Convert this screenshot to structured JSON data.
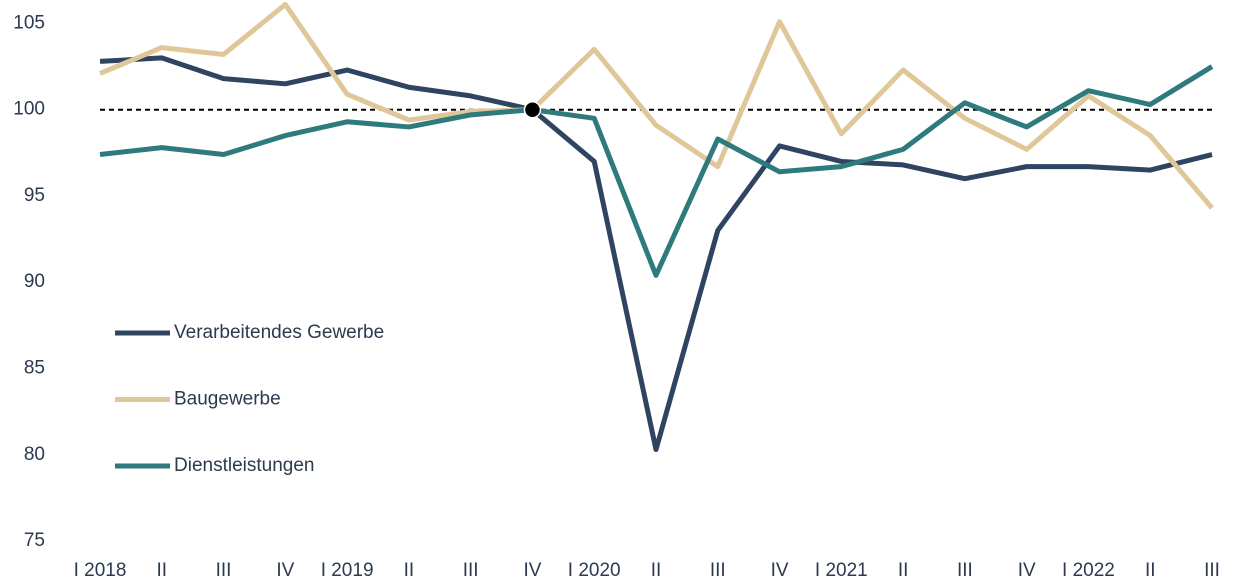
{
  "chart_data": {
    "type": "line",
    "categories": [
      "I 2018",
      "II",
      "III",
      "IV",
      "I 2019",
      "II",
      "III",
      "IV",
      "I 2020",
      "II",
      "III",
      "IV",
      "I 2021",
      "II",
      "III",
      "IV",
      "I 2022",
      "II",
      "III"
    ],
    "series": [
      {
        "name": "Verarbeitendes Gewerbe",
        "color": "#2e4461",
        "values": [
          102.8,
          103.0,
          101.8,
          101.5,
          102.3,
          101.3,
          100.8,
          100,
          97.0,
          80.3,
          93.0,
          97.9,
          97.0,
          96.8,
          96.0,
          96.7,
          96.7,
          96.5,
          97.4
        ]
      },
      {
        "name": "Baugewerbe",
        "color": "#e0c79a",
        "values": [
          102.1,
          103.6,
          103.2,
          106.1,
          100.9,
          99.4,
          99.9,
          100,
          103.5,
          99.1,
          96.7,
          105.1,
          98.6,
          102.3,
          99.5,
          97.7,
          100.8,
          98.5,
          94.3
        ]
      },
      {
        "name": "Dienstleistungen",
        "color": "#2e7a7d",
        "values": [
          97.4,
          97.8,
          97.4,
          98.5,
          99.3,
          99.0,
          99.7,
          100,
          99.5,
          90.4,
          98.3,
          96.4,
          96.7,
          97.7,
          100.4,
          99.0,
          101.1,
          100.3,
          102.5
        ]
      }
    ],
    "ylim": [
      75,
      106.3
    ],
    "yticks": [
      75,
      80,
      85,
      90,
      95,
      100,
      105
    ],
    "reference_line": 100,
    "highlight_index": 7,
    "grid": false,
    "legend": "left"
  }
}
